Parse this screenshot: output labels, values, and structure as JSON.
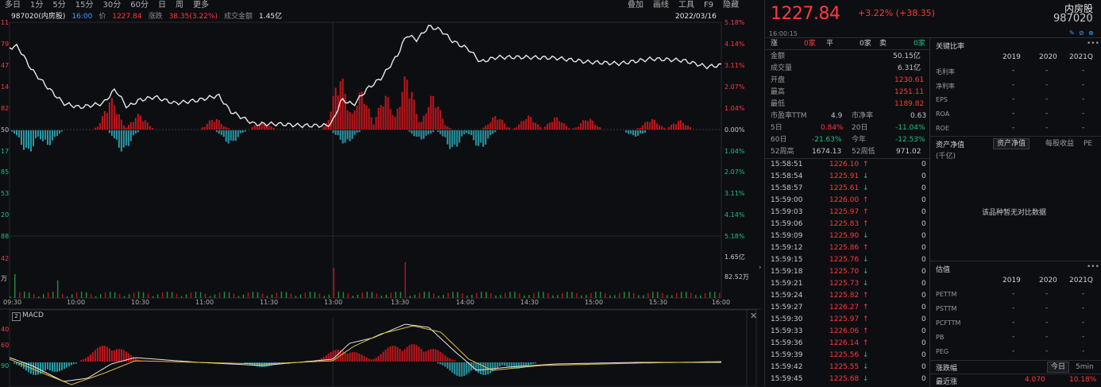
{
  "toolbar": {
    "tabs": [
      "多日",
      "1分",
      "5分",
      "15分",
      "30分",
      "60分",
      "日",
      "周",
      "更多"
    ],
    "right_items": [
      "叠加",
      "画线",
      "工具",
      "F9",
      "隐藏"
    ]
  },
  "info": {
    "code_name": "987020(内房股)",
    "time": "16:00",
    "price_label": "价",
    "price": "1227.84",
    "change_label": "涨跌",
    "change": "38.35(3.22%)",
    "turnover_label": "成交金额",
    "turnover": "1.45亿",
    "date": "2022/03/16"
  },
  "left_axis": {
    "price_ticks": [
      "11",
      "79",
      "47",
      "14",
      "82",
      "50",
      "17",
      "85",
      "53",
      "20",
      "88",
      "55"
    ],
    "volume_ticks": [
      "42",
      "万",
      "万"
    ]
  },
  "right_axis": {
    "pct_ticks": [
      "5.18%",
      "4.14%",
      "3.11%",
      "2.07%",
      "1.04%",
      "0.00%",
      "1.04%",
      "2.07%",
      "3.11%",
      "4.14%",
      "5.18%"
    ],
    "volume_ticks": [
      "1.65亿",
      "82.52万"
    ]
  },
  "time_axis": [
    "09:30",
    "10:00",
    "10:30",
    "11:00",
    "11:30",
    "13:00",
    "13:30",
    "14:00",
    "14:30",
    "15:00",
    "15:30",
    "16:00"
  ],
  "macd": {
    "label": "MACD",
    "num": "2",
    "ticks": [
      "40",
      "60",
      "90"
    ]
  },
  "quote": {
    "price": "1227.84",
    "change": "+3.22% (+38.35)",
    "name": "内房股",
    "code": "987020",
    "time": "16:00:15"
  },
  "depth": {
    "sell_label": "卖",
    "sell_vol": "0家",
    "flat_label": "平",
    "flat_vol": "0家",
    "buy_vol": "0家"
  },
  "stats": [
    {
      "label": "金额",
      "value": "50.15亿"
    },
    {
      "label": "成交量",
      "value": "6.31亿"
    },
    {
      "label": "开盘",
      "value": "1230.61"
    },
    {
      "label": "最高",
      "value": "1251.11"
    },
    {
      "label": "最低",
      "value": "1189.82"
    }
  ],
  "stats2": [
    {
      "l1": "市盈率TTM",
      "v1": "4.9",
      "l2": "市净率",
      "v2": "0.63"
    },
    {
      "l1": "5日",
      "v1": "0.84%",
      "l2": "20日",
      "v2": "-11.04%"
    },
    {
      "l1": "60日",
      "v1": "-21.63%",
      "l2": "今年",
      "v2": "-12.53%"
    },
    {
      "l1": "52周高",
      "v1": "1674.13",
      "l2": "52周低",
      "v2": "971.02"
    }
  ],
  "ticks": [
    {
      "time": "15:58:51",
      "price": "1226.10",
      "vol": "0"
    },
    {
      "time": "15:58:54",
      "price": "1225.91",
      "vol": "0"
    },
    {
      "time": "15:58:57",
      "price": "1225.61",
      "vol": "0"
    },
    {
      "time": "15:59:00",
      "price": "1226.00",
      "vol": "0"
    },
    {
      "time": "15:59:03",
      "price": "1225.97",
      "vol": "0"
    },
    {
      "time": "15:59:06",
      "price": "1225.83",
      "vol": "0"
    },
    {
      "time": "15:59:09",
      "price": "1225.90",
      "vol": "0"
    },
    {
      "time": "15:59:12",
      "price": "1225.86",
      "vol": "0"
    },
    {
      "time": "15:59:15",
      "price": "1225.76",
      "vol": "0"
    },
    {
      "time": "15:59:18",
      "price": "1225.70",
      "vol": "0"
    },
    {
      "time": "15:59:21",
      "price": "1225.73",
      "vol": "0"
    },
    {
      "time": "15:59:24",
      "price": "1225.82",
      "vol": "0"
    },
    {
      "time": "15:59:27",
      "price": "1226.27",
      "vol": "0"
    },
    {
      "time": "15:59:30",
      "price": "1225.97",
      "vol": "0"
    },
    {
      "time": "15:59:33",
      "price": "1226.06",
      "vol": "0"
    },
    {
      "time": "15:59:36",
      "price": "1226.14",
      "vol": "0"
    },
    {
      "time": "15:59:39",
      "price": "1225.56",
      "vol": "0"
    },
    {
      "time": "15:59:42",
      "price": "1225.55",
      "vol": "0"
    },
    {
      "time": "15:59:45",
      "price": "1225.68",
      "vol": "0"
    }
  ],
  "fin": {
    "title": "关键比率",
    "years": [
      "2019",
      "2020",
      "2021Q"
    ],
    "metrics": [
      "毛利率",
      "净利率",
      "EPS",
      "ROA",
      "ROE"
    ],
    "dash": "-"
  },
  "nav": {
    "title": "资产净值",
    "unit": "(千亿)",
    "btn1": "资产净值",
    "btn2": "每股收益",
    "btn3": "PE",
    "empty": "该品种暂无对比数据"
  },
  "valuation": {
    "title": "估值",
    "years": [
      "2019",
      "2020",
      "2021Q"
    ],
    "metrics": [
      "PETTM",
      "PSTTM",
      "PCFTTM",
      "PB",
      "PEG"
    ],
    "dash": "-"
  },
  "bottom": {
    "title": "涨跌幅",
    "btn1": "今日",
    "btn2": "5min",
    "label": "最近涨",
    "v1": "4.070",
    "v2": "10.18%"
  }
}
